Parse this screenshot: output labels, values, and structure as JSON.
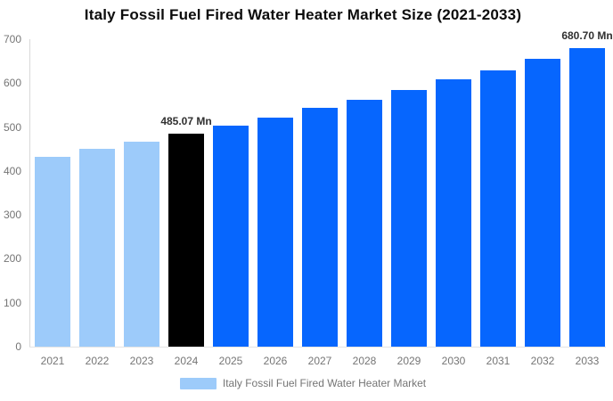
{
  "title": "Italy Fossil Fuel Fired Water Heater Market Size (2021-2033)",
  "legend": {
    "label": "Italy Fossil Fuel Fired Water Heater Market",
    "swatch_color": "#9dcbfa"
  },
  "colors": {
    "historical_bar": "#9dcbfa",
    "current_year_bar": "#000000",
    "forecast_bar": "#0666fe",
    "title_text": "#0c0c0c",
    "axis_text": "#757575",
    "annotation_text": "#303030",
    "y_axis_line": "#d8d8d8",
    "x_axis_line": "#e4e4e4"
  },
  "chart_data": {
    "type": "bar",
    "title": "Italy Fossil Fuel Fired Water Heater Market Size (2021-2033)",
    "categories": [
      "2021",
      "2022",
      "2023",
      "2024",
      "2025",
      "2026",
      "2027",
      "2028",
      "2029",
      "2030",
      "2031",
      "2032",
      "2033"
    ],
    "values": [
      432,
      450,
      467,
      485.07,
      503,
      522,
      543,
      563,
      585,
      608,
      630,
      656,
      680.7
    ],
    "bar_colors": [
      "#9dcbfa",
      "#9dcbfa",
      "#9dcbfa",
      "#000000",
      "#0666fe",
      "#0666fe",
      "#0666fe",
      "#0666fe",
      "#0666fe",
      "#0666fe",
      "#0666fe",
      "#0666fe",
      "#0666fe"
    ],
    "annotations": [
      {
        "index": 3,
        "text": "485.07 Mn"
      },
      {
        "index": 12,
        "text": "680.70 Mn"
      }
    ],
    "yticks": [
      0,
      100,
      200,
      300,
      400,
      500,
      600,
      700
    ],
    "ylim": [
      0,
      700
    ],
    "xlabel": "",
    "ylabel": "",
    "unit": "Mn",
    "legend": [
      "Italy Fossil Fuel Fired Water Heater Market"
    ],
    "legend_position": "bottom",
    "grid": false
  }
}
